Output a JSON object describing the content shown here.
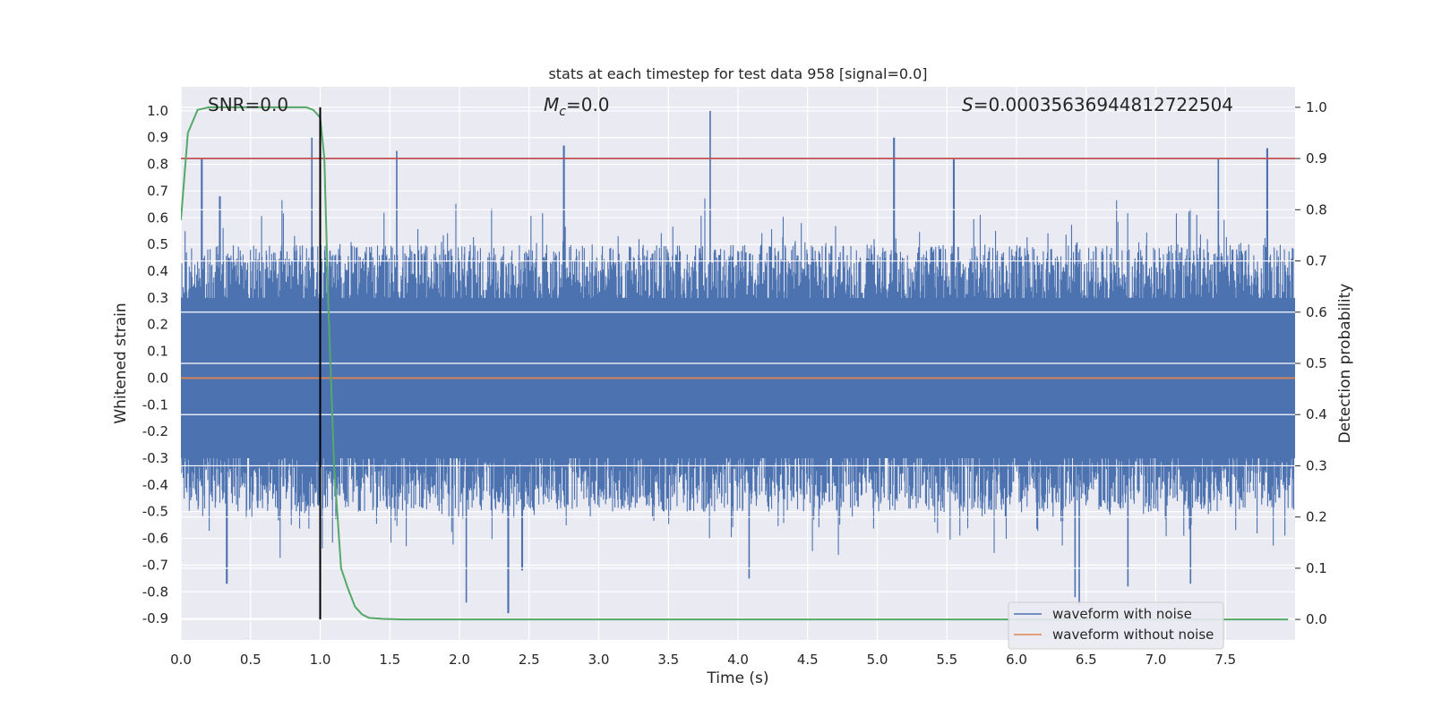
{
  "chart_data": {
    "type": "line",
    "title": "stats at each timestep for test data 958 [signal=0.0]",
    "xlabel": "Time (s)",
    "ylabel_left": "Whitened strain",
    "ylabel_right": "Detection probability",
    "xlim": [
      0.0,
      8.0
    ],
    "ylim_left": [
      -0.98,
      1.09
    ],
    "ylim_right": [
      -0.04,
      1.04
    ],
    "x_ticks": [
      "0.0",
      "0.5",
      "1.0",
      "1.5",
      "2.0",
      "2.5",
      "3.0",
      "3.5",
      "4.0",
      "4.5",
      "5.0",
      "5.5",
      "6.0",
      "6.5",
      "7.0",
      "7.5"
    ],
    "y_ticks_left": [
      "1.0",
      "0.9",
      "0.8",
      "0.7",
      "0.6",
      "0.5",
      "0.4",
      "0.3",
      "0.2",
      "0.1",
      "0.0",
      "-0.1",
      "-0.2",
      "-0.3",
      "-0.4",
      "-0.5",
      "-0.6",
      "-0.7",
      "-0.8",
      "-0.9"
    ],
    "y_ticks_right": [
      "1.0",
      "0.9",
      "0.8",
      "0.7",
      "0.6",
      "0.5",
      "0.4",
      "0.3",
      "0.2",
      "0.1",
      "0.0"
    ],
    "grid": true,
    "legend_position": "lower-right",
    "annotations": {
      "snr": "SNR=0.0",
      "mc_symbol": "M",
      "mc_sub": "c",
      "mc_value": "=0.0",
      "s_symbol": "S",
      "s_value": "=0.00035636944812722504"
    },
    "threshold": 0.9,
    "vertical_marker_x": 1.0,
    "noise_envelope": {
      "upper_typical": 0.5,
      "lower_typical": -0.5,
      "max": 1.0,
      "min": -0.88
    },
    "noise_peaks": [
      [
        0.15,
        0.82
      ],
      [
        0.28,
        0.68
      ],
      [
        0.94,
        0.9
      ],
      [
        1.55,
        0.85
      ],
      [
        2.75,
        0.87
      ],
      [
        3.8,
        1.0
      ],
      [
        5.12,
        0.9
      ],
      [
        5.55,
        0.82
      ],
      [
        7.45,
        0.82
      ],
      [
        7.8,
        0.86
      ]
    ],
    "noise_troughs": [
      [
        0.33,
        -0.77
      ],
      [
        2.05,
        -0.84
      ],
      [
        2.35,
        -0.88
      ],
      [
        2.45,
        -0.72
      ],
      [
        4.08,
        -0.75
      ],
      [
        6.42,
        -0.82
      ],
      [
        6.45,
        -0.85
      ],
      [
        6.8,
        -0.78
      ],
      [
        7.25,
        -0.77
      ]
    ],
    "series": [
      {
        "name": "waveform with noise",
        "color": "#4c72b0",
        "axis": "left"
      },
      {
        "name": "waveform without noise",
        "color": "#dd8452",
        "axis": "left",
        "x": [
          0.0,
          8.0
        ],
        "y": [
          0.0,
          0.0
        ]
      },
      {
        "color": "#55a868",
        "axis": "right",
        "x": [
          0.0,
          0.05,
          0.12,
          0.2,
          0.3,
          0.5,
          0.7,
          0.9,
          0.95,
          1.0,
          1.03,
          1.06,
          1.1,
          1.15,
          1.2,
          1.25,
          1.3,
          1.35,
          1.45,
          1.6,
          2.0,
          3.0,
          4.0,
          5.0,
          6.0,
          7.0,
          7.95
        ],
        "y": [
          0.78,
          0.95,
          0.995,
          1.0,
          1.0,
          1.0,
          1.0,
          1.0,
          0.995,
          0.98,
          0.9,
          0.6,
          0.3,
          0.1,
          0.06,
          0.025,
          0.01,
          0.003,
          0.001,
          0.0,
          0.0,
          0.0,
          0.0,
          0.0,
          0.0,
          0.0,
          0.0
        ]
      }
    ],
    "colors": {
      "threshold": "#c44e52",
      "marker": "#000000",
      "plot_bg": "#eaeaf2",
      "grid": "#ffffff"
    }
  }
}
